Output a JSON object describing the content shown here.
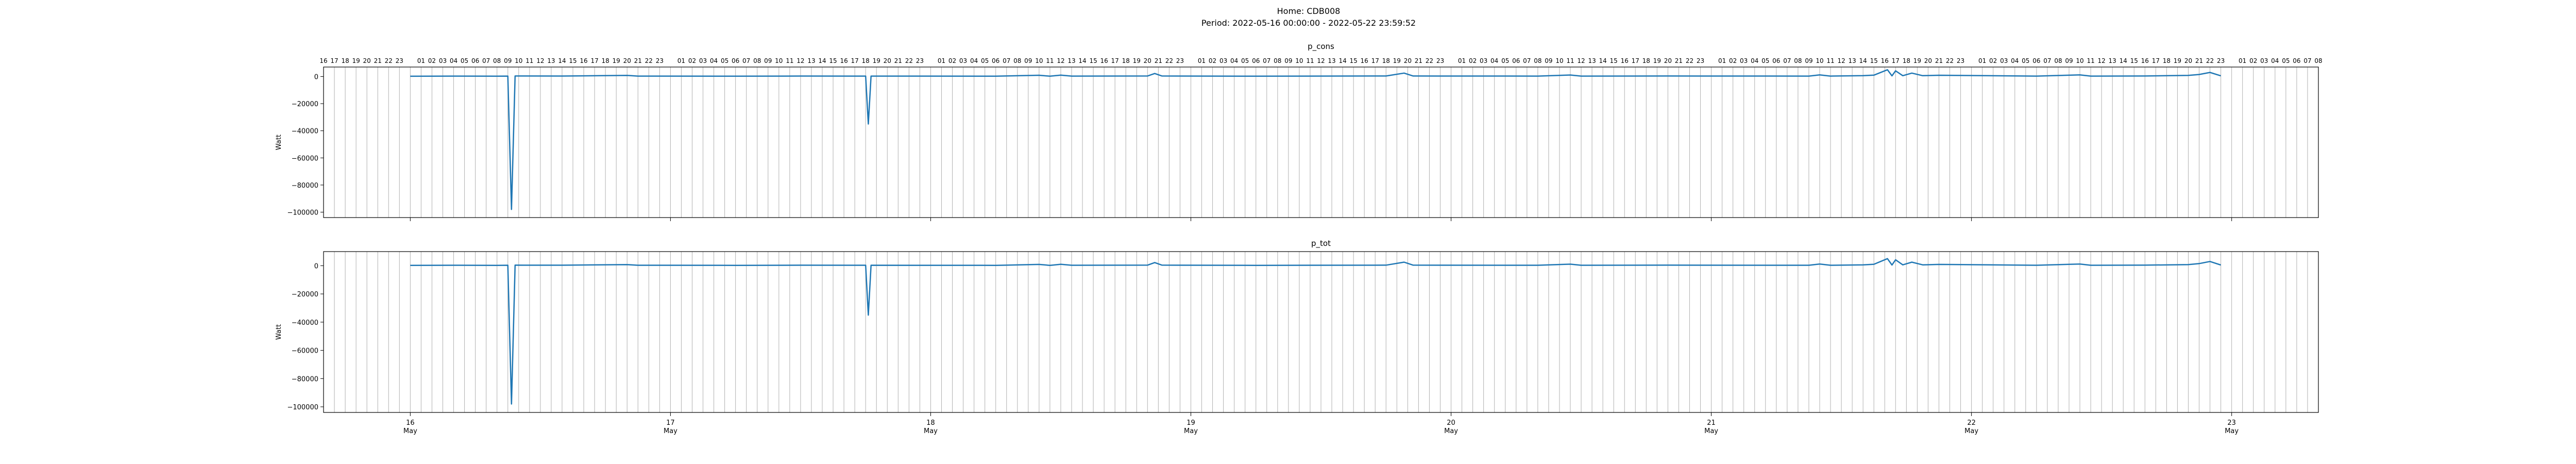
{
  "figure": {
    "title_line1": "Home: CDB008",
    "title_line2": "Period: 2022-05-16 00:00:00 - 2022-05-22 23:59:52"
  },
  "colors": {
    "line": "#1f77b4",
    "grid": "#b0b0b0",
    "axis": "#000000"
  },
  "chart_data": [
    {
      "type": "line",
      "title": "p_cons",
      "ylabel": "Watt",
      "xlabel": "",
      "x_range": [
        "2022-05-15 16:00",
        "2022-05-23 08:00"
      ],
      "ylim": [
        -104000,
        7000
      ],
      "yticks": [
        0,
        -20000,
        -40000,
        -60000,
        -80000,
        -100000
      ],
      "ytick_labels": [
        "0",
        "−20000",
        "−40000",
        "−60000",
        "−80000",
        "−100000"
      ],
      "x_major_ticks": [
        {
          "t": "2022-05-16 00:00",
          "day": "16",
          "month": "May"
        },
        {
          "t": "2022-05-17 00:00",
          "day": "17",
          "month": "May"
        },
        {
          "t": "2022-05-18 00:00",
          "day": "18",
          "month": "May"
        },
        {
          "t": "2022-05-19 00:00",
          "day": "19",
          "month": "May"
        },
        {
          "t": "2022-05-20 00:00",
          "day": "20",
          "month": "May"
        },
        {
          "t": "2022-05-21 00:00",
          "day": "21",
          "month": "May"
        },
        {
          "t": "2022-05-22 00:00",
          "day": "22",
          "month": "May"
        },
        {
          "t": "2022-05-23 00:00",
          "day": "23",
          "month": "May"
        }
      ],
      "grid": "vertical hourly",
      "legend": "none",
      "series": [
        {
          "points": [
            [
              "2022-05-16 00:00",
              200
            ],
            [
              "2022-05-16 04:00",
              300
            ],
            [
              "2022-05-16 08:00",
              250
            ],
            [
              "2022-05-16 09:00",
              300
            ],
            [
              "2022-05-16 09:20",
              -98000
            ],
            [
              "2022-05-16 09:40",
              400
            ],
            [
              "2022-05-16 14:00",
              350
            ],
            [
              "2022-05-16 20:00",
              800
            ],
            [
              "2022-05-16 21:00",
              300
            ],
            [
              "2022-05-17 06:00",
              250
            ],
            [
              "2022-05-17 12:00",
              350
            ],
            [
              "2022-05-17 18:00",
              300
            ],
            [
              "2022-05-17 18:15",
              -35000
            ],
            [
              "2022-05-17 18:30",
              300
            ],
            [
              "2022-05-18 06:00",
              250
            ],
            [
              "2022-05-18 10:00",
              900
            ],
            [
              "2022-05-18 11:00",
              250
            ],
            [
              "2022-05-18 12:00",
              1000
            ],
            [
              "2022-05-18 13:00",
              300
            ],
            [
              "2022-05-18 20:00",
              400
            ],
            [
              "2022-05-18 20:40",
              2200
            ],
            [
              "2022-05-18 21:20",
              400
            ],
            [
              "2022-05-19 06:00",
              250
            ],
            [
              "2022-05-19 18:00",
              400
            ],
            [
              "2022-05-19 19:40",
              2500
            ],
            [
              "2022-05-19 20:30",
              400
            ],
            [
              "2022-05-20 08:00",
              300
            ],
            [
              "2022-05-20 11:00",
              1100
            ],
            [
              "2022-05-20 12:00",
              300
            ],
            [
              "2022-05-20 20:00",
              400
            ],
            [
              "2022-05-21 09:00",
              300
            ],
            [
              "2022-05-21 10:00",
              1200
            ],
            [
              "2022-05-21 11:00",
              300
            ],
            [
              "2022-05-21 14:00",
              600
            ],
            [
              "2022-05-21 15:00",
              1000
            ],
            [
              "2022-05-21 16:15",
              5000
            ],
            [
              "2022-05-21 16:40",
              500
            ],
            [
              "2022-05-21 17:00",
              4200
            ],
            [
              "2022-05-21 17:40",
              600
            ],
            [
              "2022-05-21 18:30",
              2500
            ],
            [
              "2022-05-21 19:30",
              600
            ],
            [
              "2022-05-21 21:00",
              900
            ],
            [
              "2022-05-22 06:00",
              300
            ],
            [
              "2022-05-22 10:00",
              1200
            ],
            [
              "2022-05-22 11:00",
              300
            ],
            [
              "2022-05-22 16:00",
              400
            ],
            [
              "2022-05-22 20:00",
              800
            ],
            [
              "2022-05-22 21:00",
              1500
            ],
            [
              "2022-05-22 22:00",
              3000
            ],
            [
              "2022-05-22 23:00",
              500
            ]
          ]
        }
      ]
    },
    {
      "type": "line",
      "title": "p_tot",
      "ylabel": "Watt",
      "xlabel": "",
      "x_range": [
        "2022-05-15 16:00",
        "2022-05-23 08:00"
      ],
      "ylim": [
        -104000,
        10000
      ],
      "yticks": [
        0,
        -20000,
        -40000,
        -60000,
        -80000,
        -100000
      ],
      "ytick_labels": [
        "0",
        "−20000",
        "−40000",
        "−60000",
        "−80000",
        "−100000"
      ],
      "x_major_ticks": [
        {
          "t": "2022-05-16 00:00",
          "day": "16",
          "month": "May"
        },
        {
          "t": "2022-05-17 00:00",
          "day": "17",
          "month": "May"
        },
        {
          "t": "2022-05-18 00:00",
          "day": "18",
          "month": "May"
        },
        {
          "t": "2022-05-19 00:00",
          "day": "19",
          "month": "May"
        },
        {
          "t": "2022-05-20 00:00",
          "day": "20",
          "month": "May"
        },
        {
          "t": "2022-05-21 00:00",
          "day": "21",
          "month": "May"
        },
        {
          "t": "2022-05-22 00:00",
          "day": "22",
          "month": "May"
        },
        {
          "t": "2022-05-23 00:00",
          "day": "23",
          "month": "May"
        }
      ],
      "grid": "vertical hourly",
      "legend": "none",
      "series": [
        {
          "points": [
            [
              "2022-05-16 00:00",
              200
            ],
            [
              "2022-05-16 04:00",
              300
            ],
            [
              "2022-05-16 08:00",
              250
            ],
            [
              "2022-05-16 09:00",
              300
            ],
            [
              "2022-05-16 09:20",
              -98000
            ],
            [
              "2022-05-16 09:40",
              400
            ],
            [
              "2022-05-16 14:00",
              350
            ],
            [
              "2022-05-16 20:00",
              800
            ],
            [
              "2022-05-16 21:00",
              300
            ],
            [
              "2022-05-17 06:00",
              250
            ],
            [
              "2022-05-17 12:00",
              350
            ],
            [
              "2022-05-17 18:00",
              300
            ],
            [
              "2022-05-17 18:15",
              -35000
            ],
            [
              "2022-05-17 18:30",
              300
            ],
            [
              "2022-05-18 06:00",
              250
            ],
            [
              "2022-05-18 10:00",
              900
            ],
            [
              "2022-05-18 11:00",
              250
            ],
            [
              "2022-05-18 12:00",
              1000
            ],
            [
              "2022-05-18 13:00",
              300
            ],
            [
              "2022-05-18 20:00",
              400
            ],
            [
              "2022-05-18 20:40",
              2200
            ],
            [
              "2022-05-18 21:20",
              400
            ],
            [
              "2022-05-19 06:00",
              250
            ],
            [
              "2022-05-19 18:00",
              400
            ],
            [
              "2022-05-19 19:40",
              2500
            ],
            [
              "2022-05-19 20:30",
              400
            ],
            [
              "2022-05-20 08:00",
              300
            ],
            [
              "2022-05-20 11:00",
              1100
            ],
            [
              "2022-05-20 12:00",
              300
            ],
            [
              "2022-05-20 20:00",
              400
            ],
            [
              "2022-05-21 09:00",
              300
            ],
            [
              "2022-05-21 10:00",
              1200
            ],
            [
              "2022-05-21 11:00",
              300
            ],
            [
              "2022-05-21 14:00",
              600
            ],
            [
              "2022-05-21 15:00",
              1000
            ],
            [
              "2022-05-21 16:15",
              5000
            ],
            [
              "2022-05-21 16:40",
              500
            ],
            [
              "2022-05-21 17:00",
              4200
            ],
            [
              "2022-05-21 17:40",
              600
            ],
            [
              "2022-05-21 18:30",
              2500
            ],
            [
              "2022-05-21 19:30",
              600
            ],
            [
              "2022-05-21 21:00",
              900
            ],
            [
              "2022-05-22 06:00",
              300
            ],
            [
              "2022-05-22 10:00",
              1200
            ],
            [
              "2022-05-22 11:00",
              300
            ],
            [
              "2022-05-22 16:00",
              400
            ],
            [
              "2022-05-22 20:00",
              800
            ],
            [
              "2022-05-22 21:00",
              1500
            ],
            [
              "2022-05-22 22:00",
              3000
            ],
            [
              "2022-05-22 23:00",
              500
            ]
          ]
        }
      ]
    }
  ]
}
